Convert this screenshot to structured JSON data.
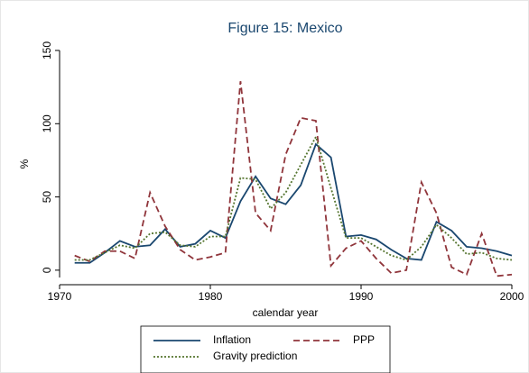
{
  "chart_data": {
    "type": "line",
    "title": "Figure 15: Mexico",
    "x_label": "calendar year",
    "y_label": "%",
    "x": [
      1971,
      1972,
      1973,
      1974,
      1975,
      1976,
      1977,
      1978,
      1979,
      1980,
      1981,
      1982,
      1983,
      1984,
      1985,
      1986,
      1987,
      1988,
      1989,
      1990,
      1991,
      1992,
      1993,
      1994,
      1995,
      1996,
      1997,
      1998,
      1999,
      2000
    ],
    "series": [
      {
        "name": "Inflation",
        "color": "#1a476f",
        "dash": "solid",
        "values": [
          5,
          5,
          12,
          20,
          16,
          17,
          28,
          16,
          18,
          27,
          22,
          47,
          64,
          49,
          45,
          58,
          86,
          77,
          23,
          24,
          21,
          14,
          8,
          7,
          33,
          27,
          16,
          15,
          13,
          10
        ]
      },
      {
        "name": "PPP",
        "color": "#90353b",
        "dash": "dashed",
        "values": [
          10,
          6,
          13,
          13,
          8,
          53,
          30,
          14,
          7,
          9,
          12,
          129,
          39,
          27,
          79,
          104,
          102,
          3,
          15,
          20,
          8,
          -2,
          0,
          60,
          39,
          2,
          -3,
          25,
          -4,
          -3
        ]
      },
      {
        "name": "Gravity prediction",
        "color": "#55752f",
        "dash": "dotted",
        "values": [
          7,
          7,
          12,
          17,
          15,
          25,
          26,
          17,
          16,
          23,
          23,
          63,
          62,
          42,
          53,
          72,
          91,
          56,
          22,
          22,
          16,
          10,
          7,
          16,
          31,
          22,
          11,
          12,
          8,
          7
        ]
      }
    ],
    "xlim": [
      1970,
      2000
    ],
    "xticks": [
      1970,
      1980,
      1990,
      2000
    ],
    "ylim": [
      -5,
      150
    ],
    "yticks": [
      0,
      50,
      100,
      150
    ]
  }
}
